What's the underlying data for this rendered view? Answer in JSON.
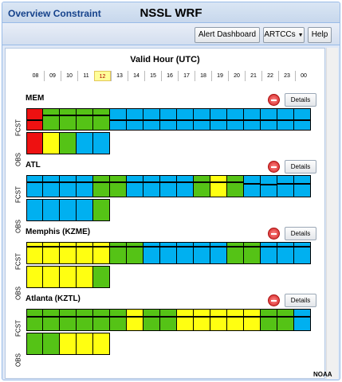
{
  "window": {
    "title": "Overview Constraint",
    "app_title": "NSSL WRF"
  },
  "toolbar": {
    "alert_dashboard": "Alert Dashboard",
    "artccs": "ARTCCs",
    "help": "Help"
  },
  "grid": {
    "valid_hour_label": "Valid Hour (UTC)",
    "hours": [
      "08",
      "09",
      "10",
      "11",
      "12",
      "13",
      "14",
      "15",
      "16",
      "17",
      "18",
      "19",
      "20",
      "21",
      "22",
      "23",
      "00"
    ],
    "current_hour": "12"
  },
  "colors": {
    "R": "#ee1111",
    "G": "#55c316",
    "Y": "#ffff11",
    "B": "#00b0f0"
  },
  "labels": {
    "fcst": "FCST",
    "obs": "OBS",
    "details": "Details"
  },
  "sections": [
    {
      "name": "MEM",
      "fcst": [
        "R",
        "G",
        "G",
        "G",
        "G",
        "B",
        "B",
        "B",
        "B",
        "B",
        "B",
        "B",
        "B",
        "B",
        "B",
        "B",
        "B"
      ],
      "fcst_trend": [
        0.5,
        0.25,
        0.25,
        0.25,
        0.25,
        0.5,
        0.5,
        0.5,
        0.5,
        0.5,
        0.5,
        0.5,
        0.5,
        0.5,
        0.5,
        0.5,
        0.5
      ],
      "obs": [
        "R",
        "Y",
        "G",
        "B",
        "B"
      ]
    },
    {
      "name": "ATL",
      "fcst": [
        "B",
        "B",
        "B",
        "B",
        "G",
        "G",
        "B",
        "B",
        "B",
        "B",
        "G",
        "Y",
        "G",
        "B",
        "B",
        "B",
        "B"
      ],
      "fcst_trend": [
        0.25,
        0.25,
        0.25,
        0.25,
        0.25,
        0.25,
        0.25,
        0.25,
        0.25,
        0.25,
        0.25,
        0.25,
        0.25,
        0.35,
        0.4,
        0.35,
        0.35
      ],
      "obs": [
        "B",
        "B",
        "B",
        "B",
        "G"
      ]
    },
    {
      "name": "Memphis (KZME)",
      "fcst": [
        "Y",
        "Y",
        "Y",
        "Y",
        "Y",
        "G",
        "G",
        "B",
        "B",
        "B",
        "B",
        "B",
        "G",
        "G",
        "B",
        "B",
        "B"
      ],
      "fcst_trend": [
        0.15,
        0.15,
        0.15,
        0.15,
        0.15,
        0.15,
        0.15,
        0.15,
        0.15,
        0.15,
        0.15,
        0.15,
        0.15,
        0.15,
        0.15,
        0.15,
        0.15
      ],
      "obs": [
        "Y",
        "Y",
        "Y",
        "Y",
        "G"
      ]
    },
    {
      "name": "Atlanta (KZTL)",
      "fcst": [
        "G",
        "G",
        "G",
        "G",
        "G",
        "G",
        "Y",
        "G",
        "G",
        "Y",
        "Y",
        "Y",
        "Y",
        "Y",
        "G",
        "G",
        "B"
      ],
      "fcst_trend": [
        0.3,
        0.3,
        0.3,
        0.3,
        0.3,
        0.3,
        0.3,
        0.3,
        0.3,
        0.3,
        0.3,
        0.3,
        0.3,
        0.3,
        0.3,
        0.3,
        0.3
      ],
      "obs": [
        "G",
        "G",
        "Y",
        "Y",
        "Y"
      ]
    }
  ],
  "footer": {
    "noaa": "NOAA"
  }
}
